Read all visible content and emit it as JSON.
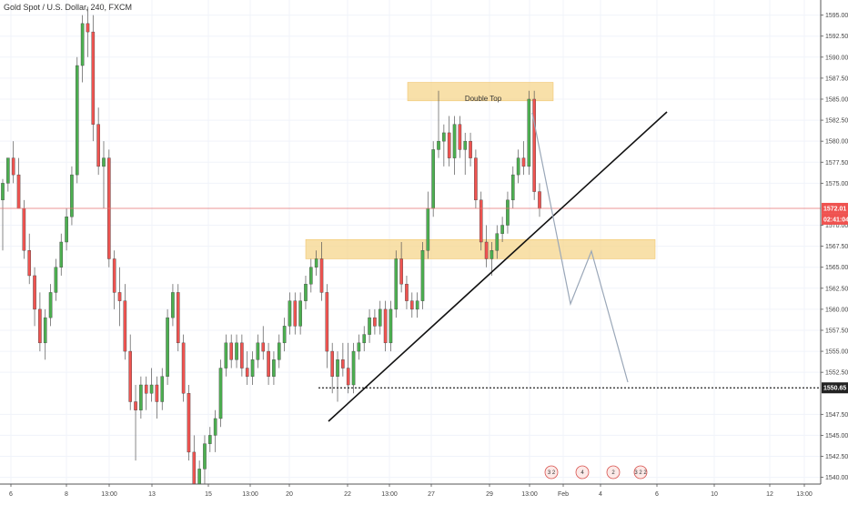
{
  "header": {
    "symbol_title": "Gold Spot / U.S. Dollar, 240, FXCM"
  },
  "chart_data": {
    "type": "candlestick",
    "title": "Gold Spot / U.S. Dollar, 240, FXCM",
    "x_ticks": [
      "6",
      "8",
      "13:00",
      "13",
      "15",
      "13:00",
      "20",
      "22",
      "13:00",
      "27",
      "29",
      "13:00",
      "Feb",
      "4",
      "6",
      "10",
      "12",
      "13:00"
    ],
    "y_ticks": [
      "1595.00",
      "1592.50",
      "1590.00",
      "1587.50",
      "1585.00",
      "1582.50",
      "1580.00",
      "1577.50",
      "1575.00",
      "1570.00",
      "1567.50",
      "1565.00",
      "1562.50",
      "1560.00",
      "1557.50",
      "1555.00",
      "1552.50",
      "1547.50",
      "1545.00",
      "1542.50",
      "1540.00"
    ],
    "ylim": [
      1539.2,
      1596.8
    ],
    "current_price": {
      "label": "1572.01",
      "value": 1572.01,
      "countdown": "02:41:04"
    },
    "support_level": {
      "label": "1550.65",
      "value": 1550.65
    },
    "annotations": {
      "double_top_label": "Double Top"
    },
    "zones": [
      {
        "name": "double-top-zone",
        "from": 1584.8,
        "to": 1587.0
      },
      {
        "name": "support-resistance-zone",
        "from": 1566.0,
        "to": 1568.3
      }
    ],
    "events": [
      {
        "label": "3 2"
      },
      {
        "label": "4"
      },
      {
        "label": "2"
      },
      {
        "label": "3 2 2"
      }
    ],
    "candles": [
      [
        1573,
        1575.5,
        1567,
        1575
      ],
      [
        1575,
        1578,
        1574,
        1578
      ],
      [
        1578,
        1580,
        1575,
        1576
      ],
      [
        1576,
        1578,
        1572,
        1572
      ],
      [
        1572,
        1573,
        1566,
        1567
      ],
      [
        1567,
        1569,
        1563,
        1564
      ],
      [
        1564,
        1565,
        1558,
        1560
      ],
      [
        1560,
        1562,
        1555,
        1556
      ],
      [
        1556,
        1560,
        1554,
        1559
      ],
      [
        1559,
        1563,
        1558,
        1562
      ],
      [
        1562,
        1566,
        1561,
        1565
      ],
      [
        1565,
        1569,
        1564,
        1568
      ],
      [
        1568,
        1572,
        1567,
        1571
      ],
      [
        1571,
        1577,
        1570,
        1576
      ],
      [
        1576,
        1590,
        1575,
        1589
      ],
      [
        1589,
        1595,
        1587,
        1594
      ],
      [
        1594,
        1596,
        1590,
        1593
      ],
      [
        1593,
        1595,
        1580,
        1582
      ],
      [
        1582,
        1584,
        1576,
        1577
      ],
      [
        1577,
        1580,
        1572,
        1578
      ],
      [
        1578,
        1579,
        1565,
        1566
      ],
      [
        1566,
        1567,
        1560,
        1562
      ],
      [
        1562,
        1565,
        1558,
        1561
      ],
      [
        1561,
        1563,
        1554,
        1555
      ],
      [
        1555,
        1557,
        1548,
        1549
      ],
      [
        1549,
        1551,
        1542,
        1548
      ],
      [
        1548,
        1552,
        1547,
        1551
      ],
      [
        1551,
        1552,
        1548,
        1550
      ],
      [
        1550,
        1553,
        1549,
        1551
      ],
      [
        1551,
        1552,
        1547,
        1549
      ],
      [
        1549,
        1553,
        1548,
        1552
      ],
      [
        1552,
        1560,
        1551,
        1559
      ],
      [
        1559,
        1563,
        1558,
        1562
      ],
      [
        1562,
        1563,
        1555,
        1556
      ],
      [
        1556,
        1557,
        1549,
        1550
      ],
      [
        1550,
        1551,
        1542,
        1543
      ],
      [
        1543,
        1545,
        1536,
        1537
      ],
      [
        1537,
        1542,
        1535,
        1541
      ],
      [
        1541,
        1545,
        1539,
        1544
      ],
      [
        1544,
        1546,
        1543,
        1545
      ],
      [
        1545,
        1548,
        1543,
        1547
      ],
      [
        1547,
        1554,
        1546,
        1553
      ],
      [
        1553,
        1557,
        1552,
        1556
      ],
      [
        1556,
        1557,
        1553,
        1554
      ],
      [
        1554,
        1557,
        1553,
        1556
      ],
      [
        1556,
        1557,
        1552,
        1553
      ],
      [
        1553,
        1555,
        1551,
        1552
      ],
      [
        1552,
        1555,
        1551,
        1554
      ],
      [
        1554,
        1557,
        1553,
        1556
      ],
      [
        1556,
        1558,
        1554,
        1555
      ],
      [
        1555,
        1556,
        1551,
        1552
      ],
      [
        1552,
        1555,
        1551,
        1554
      ],
      [
        1554,
        1557,
        1553,
        1556
      ],
      [
        1556,
        1559,
        1555,
        1558
      ],
      [
        1558,
        1562,
        1557,
        1561
      ],
      [
        1561,
        1562,
        1557,
        1558
      ],
      [
        1558,
        1562,
        1557,
        1561
      ],
      [
        1561,
        1564,
        1560,
        1563
      ],
      [
        1563,
        1566,
        1562,
        1565
      ],
      [
        1565,
        1567,
        1564,
        1566
      ],
      [
        1566,
        1568,
        1561,
        1562
      ],
      [
        1562,
        1563,
        1553,
        1555
      ],
      [
        1555,
        1556,
        1550,
        1552
      ],
      [
        1552,
        1555,
        1549,
        1554
      ],
      [
        1554,
        1556,
        1552,
        1553
      ],
      [
        1553,
        1556,
        1550,
        1551
      ],
      [
        1551,
        1556,
        1550,
        1555
      ],
      [
        1555,
        1557,
        1554,
        1556
      ],
      [
        1556,
        1558,
        1555,
        1557
      ],
      [
        1557,
        1560,
        1556,
        1559
      ],
      [
        1559,
        1560,
        1557,
        1558
      ],
      [
        1558,
        1561,
        1557,
        1560
      ],
      [
        1560,
        1561,
        1555,
        1556
      ],
      [
        1556,
        1561,
        1555,
        1560
      ],
      [
        1560,
        1567,
        1559,
        1566
      ],
      [
        1566,
        1568,
        1562,
        1563
      ],
      [
        1563,
        1564,
        1560,
        1561
      ],
      [
        1561,
        1562,
        1559,
        1560
      ],
      [
        1560,
        1562,
        1559,
        1561
      ],
      [
        1561,
        1568,
        1560,
        1567
      ],
      [
        1567,
        1574,
        1566,
        1572
      ],
      [
        1572,
        1580,
        1571,
        1579
      ],
      [
        1579,
        1586,
        1578,
        1580
      ],
      [
        1580,
        1582,
        1577,
        1581
      ],
      [
        1581,
        1583,
        1577,
        1578
      ],
      [
        1578,
        1583,
        1576,
        1582
      ],
      [
        1582,
        1583,
        1578,
        1579
      ],
      [
        1579,
        1581,
        1576,
        1580
      ],
      [
        1580,
        1581,
        1577,
        1578
      ],
      [
        1578,
        1579,
        1572,
        1573
      ],
      [
        1573,
        1574,
        1567,
        1568
      ],
      [
        1568,
        1570,
        1565,
        1566
      ],
      [
        1566,
        1568,
        1564,
        1567
      ],
      [
        1567,
        1570,
        1566,
        1569
      ],
      [
        1569,
        1571,
        1568,
        1570
      ],
      [
        1570,
        1574,
        1569,
        1573
      ],
      [
        1573,
        1577,
        1572,
        1576
      ],
      [
        1576,
        1579,
        1575,
        1578
      ],
      [
        1578,
        1580,
        1576,
        1577
      ],
      [
        1577,
        1586,
        1576,
        1585
      ],
      [
        1585,
        1586,
        1573,
        1574
      ],
      [
        1574,
        1575,
        1571,
        1572
      ]
    ]
  }
}
